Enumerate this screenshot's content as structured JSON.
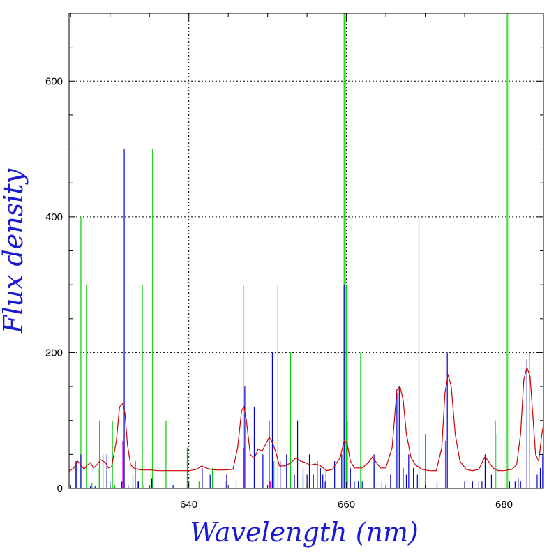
{
  "chart_data": {
    "type": "line",
    "title": "",
    "xlabel": "Wavelength (nm)",
    "ylabel": "Flux density",
    "xlim": [
      624.8,
      685
    ],
    "ylim": [
      0,
      700
    ],
    "x_ticks": [
      640,
      660,
      680
    ],
    "x_tick_labels": [
      "640",
      "660",
      "680"
    ],
    "y_ticks": [
      0,
      200,
      400,
      600
    ],
    "y_tick_labels": [
      "0",
      "200",
      "400",
      "600"
    ],
    "grid": true,
    "colors": {
      "spectrum": "#cc0000",
      "blue_lines": "#0000cc",
      "green_lines": "#00cc00",
      "magenta_lines": "#ee00ee",
      "axis_title": "#1a1ad4"
    },
    "series": [
      {
        "color": "#cc0000",
        "x": [
          624.8,
          625.4,
          625.9,
          626.3,
          626.7,
          627.0,
          627.5,
          627.9,
          628.3,
          628.8,
          629.4,
          629.8,
          630.2,
          630.8,
          631.2,
          631.6,
          631.9,
          632.2,
          632.6,
          633.0,
          633.5,
          634.0,
          634.6,
          635.3,
          636.0,
          637.0,
          638.5,
          640.0,
          641.0,
          641.6,
          642.2,
          642.8,
          643.5,
          644.5,
          645.6,
          646.2,
          646.7,
          647.0,
          647.3,
          647.8,
          648.3,
          648.8,
          649.3,
          649.8,
          650.2,
          650.6,
          651.0,
          651.5,
          652.2,
          653.0,
          653.6,
          654.2,
          654.8,
          655.4,
          656.0,
          656.6,
          657.5,
          658.2,
          659.2,
          659.7,
          660.1,
          660.5,
          661.0,
          662.0,
          662.8,
          663.3,
          663.8,
          664.3,
          665.0,
          665.8,
          666.4,
          666.8,
          667.2,
          667.6,
          668.2,
          668.8,
          669.6,
          670.5,
          671.4,
          672.1,
          672.5,
          672.9,
          673.3,
          673.8,
          674.4,
          675.2,
          676.0,
          676.8,
          677.2,
          677.6,
          678.0,
          678.6,
          679.2,
          680.0,
          681.0,
          681.6,
          682.1,
          682.5,
          682.9,
          683.3,
          683.7,
          684.0,
          684.4,
          684.8,
          685.0
        ],
        "y": [
          25,
          30,
          40,
          35,
          28,
          33,
          38,
          30,
          34,
          42,
          38,
          30,
          32,
          70,
          120,
          125,
          110,
          65,
          35,
          30,
          28,
          27,
          27,
          27,
          26,
          26,
          26,
          26,
          28,
          33,
          30,
          28,
          27,
          27,
          28,
          60,
          115,
          120,
          100,
          50,
          44,
          58,
          55,
          66,
          75,
          68,
          55,
          33,
          33,
          38,
          45,
          40,
          38,
          34,
          36,
          34,
          26,
          28,
          45,
          70,
          66,
          40,
          30,
          30,
          38,
          46,
          38,
          30,
          30,
          60,
          145,
          150,
          130,
          80,
          45,
          34,
          28,
          26,
          26,
          60,
          140,
          168,
          150,
          80,
          40,
          28,
          26,
          28,
          38,
          47,
          40,
          30,
          26,
          26,
          28,
          35,
          80,
          160,
          178,
          165,
          100,
          50,
          40,
          80,
          93
        ]
      },
      {
        "name": "",
        "color": "#00cc00",
        "type": "stick",
        "x": [
          625.6,
          626.3,
          627.0,
          627.7,
          628.5,
          629.6,
          630.3,
          630.6,
          633.5,
          634.1,
          635.2,
          635.4,
          637.1,
          639.8,
          641.3,
          643.0,
          646.0,
          650.8,
          651.3,
          652.9,
          654.5,
          657.4,
          659.7,
          659.85,
          660.0,
          661.8,
          663.5,
          669.2,
          670.0,
          678.9,
          679.1,
          680.4,
          680.6
        ],
        "y": [
          40,
          400,
          300,
          8,
          30,
          20,
          100,
          5,
          10,
          300,
          50,
          500,
          100,
          60,
          10,
          30,
          10,
          40,
          300,
          200,
          20,
          30,
          700,
          700,
          300,
          200,
          30,
          400,
          80,
          100,
          80,
          700,
          700
        ]
      },
      {
        "name": "",
        "color": "#0000cc",
        "type": "stick",
        "x": [
          625.7,
          626.3,
          627.5,
          628.1,
          628.7,
          629.1,
          629.6,
          630.0,
          631.5,
          631.8,
          632.3,
          632.9,
          633.2,
          633.6,
          634.3,
          635.3,
          638.0,
          641.7,
          642.7,
          644.6,
          644.8,
          646.9,
          647.1,
          648.3,
          649.4,
          650.2,
          650.6,
          651.6,
          652.4,
          653.4,
          653.8,
          654.5,
          655.0,
          655.3,
          655.8,
          656.3,
          656.7,
          657.0,
          657.3,
          658.5,
          659.4,
          659.7,
          660.1,
          660.5,
          661.0,
          661.5,
          662.0,
          663.5,
          664.5,
          665.6,
          666.4,
          666.7,
          667.2,
          667.6,
          667.9,
          668.5,
          669.0,
          671.5,
          672.8,
          675.0,
          676.0,
          676.8,
          677.2,
          677.6,
          678.4,
          680.7,
          681.4,
          681.8,
          682.1,
          682.9,
          683.2,
          684.2,
          684.6,
          684.9
        ],
        "y": [
          40,
          50,
          3,
          3,
          100,
          50,
          50,
          10,
          10,
          500,
          5,
          20,
          40,
          10,
          5,
          15,
          5,
          30,
          20,
          10,
          20,
          300,
          150,
          120,
          50,
          100,
          200,
          40,
          50,
          20,
          100,
          30,
          20,
          50,
          20,
          40,
          30,
          20,
          10,
          40,
          50,
          300,
          100,
          30,
          10,
          10,
          10,
          50,
          10,
          20,
          140,
          150,
          30,
          20,
          50,
          30,
          20,
          10,
          200,
          10,
          10,
          10,
          10,
          50,
          20,
          10,
          10,
          15,
          10,
          190,
          200,
          20,
          30,
          50
        ]
      },
      {
        "name": "",
        "color": "#ee00ee",
        "type": "stick",
        "x": [
          631.65,
          646.95,
          650.3,
          672.6
        ],
        "y": [
          70,
          60,
          10,
          70
        ]
      }
    ]
  }
}
